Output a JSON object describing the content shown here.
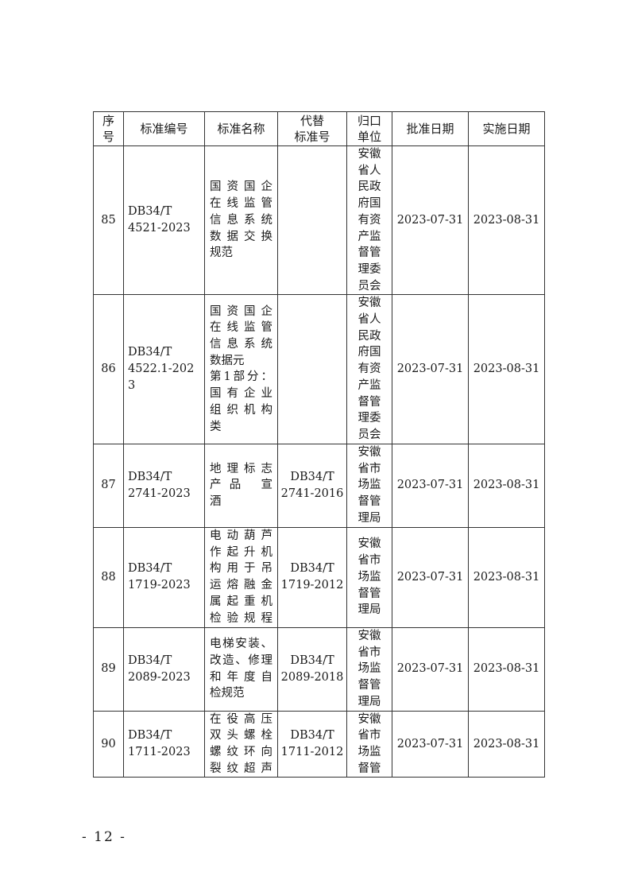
{
  "table": {
    "headers": [
      "序\n号",
      "标准编号",
      "标准名称",
      "代替\n标准号",
      "归口\n单位",
      "批准日期",
      "实施日期"
    ],
    "rows": [
      {
        "no": "85",
        "code": [
          "DB34/T",
          "4521-2023"
        ],
        "name": [
          "国资国企",
          "在线监管",
          "信息系统",
          "数据交换",
          "规范"
        ],
        "replaces": [],
        "unit": [
          "安徽",
          "省人",
          "民政",
          "府国",
          "有资",
          "产监",
          "督管",
          "理委",
          "员会"
        ],
        "approve": "2023-07-31",
        "effective": "2023-08-31"
      },
      {
        "no": "86",
        "code": [
          "DB34/T",
          "4522.1-202",
          "3"
        ],
        "name": [
          "国资国企",
          "在线监管",
          "信息系统",
          "数据元",
          "第1部分：",
          "国有企业",
          "组织机构",
          "类"
        ],
        "replaces": [],
        "unit": [
          "安徽",
          "省人",
          "民政",
          "府国",
          "有资",
          "产监",
          "督管",
          "理委",
          "员会"
        ],
        "approve": "2023-07-31",
        "effective": "2023-08-31"
      },
      {
        "no": "87",
        "code": [
          "DB34/T",
          "2741-2023"
        ],
        "name": [
          "地理标志",
          "产品 宣",
          "酒"
        ],
        "replaces": [
          "DB34/T",
          "2741-2016"
        ],
        "unit": [
          "安徽",
          "省市",
          "场监",
          "督管",
          "理局"
        ],
        "approve": "2023-07-31",
        "effective": "2023-08-31"
      },
      {
        "no": "88",
        "code": [
          "DB34/T",
          "1719-2023"
        ],
        "name": [
          "电动葫芦",
          "作起升机",
          "构用于吊",
          "运熔融金",
          "属起重机",
          "检验规程"
        ],
        "replaces": [
          "DB34/T",
          "1719-2012"
        ],
        "unit": [
          "安徽",
          "省市",
          "场监",
          "督管",
          "理局"
        ],
        "approve": "2023-07-31",
        "effective": "2023-08-31"
      },
      {
        "no": "89",
        "code": [
          "DB34/T",
          "2089-2023"
        ],
        "name": [
          "电梯安装、",
          "改造、修理",
          "和年度自",
          "检规范"
        ],
        "replaces": [
          "DB34/T",
          "2089-2018"
        ],
        "unit": [
          "安徽",
          "省市",
          "场监",
          "督管",
          "理局"
        ],
        "approve": "2023-07-31",
        "effective": "2023-08-31"
      },
      {
        "no": "90",
        "code": [
          "DB34/T",
          "1711-2023"
        ],
        "name": [
          "在役高压",
          "双头螺栓",
          "螺纹环向",
          "裂纹超声"
        ],
        "replaces": [
          "DB34/T",
          "1711-2012"
        ],
        "unit": [
          "安徽",
          "省市",
          "场监",
          "督管"
        ],
        "approve": "2023-07-31",
        "effective": "2023-08-31"
      }
    ]
  },
  "footer": {
    "page_number": "- 12 -"
  }
}
